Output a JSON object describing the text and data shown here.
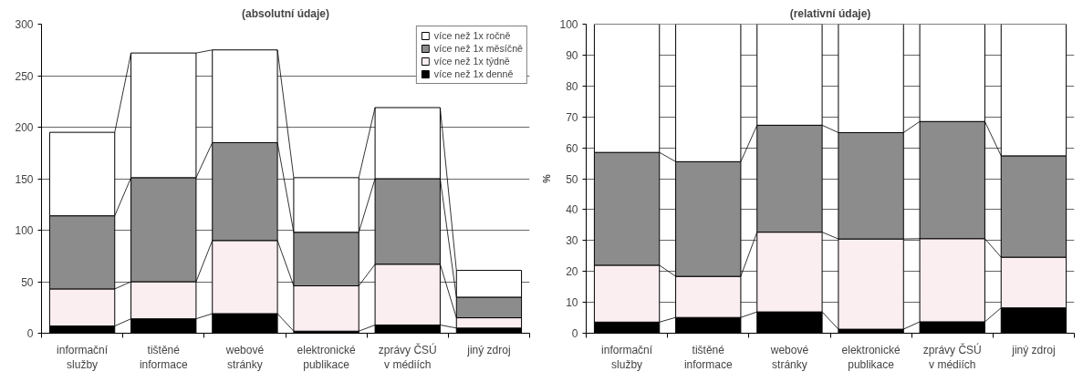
{
  "chart_data": [
    {
      "type": "bar",
      "stacked": true,
      "title": "(absolutní údaje)",
      "categories": [
        "informační\nslužby",
        "tištěné\ninformace",
        "webové\nstránky",
        "elektronické\npublikace",
        "zprávy ČSÚ\nv médiích",
        "jiný zdroj"
      ],
      "series": [
        {
          "name": "více než 1x denně",
          "color": "#000000",
          "values": [
            7,
            14,
            19,
            2,
            8,
            5
          ]
        },
        {
          "name": "více než 1x týdně",
          "color": "#fbeef0",
          "values": [
            36,
            36,
            71,
            44,
            59,
            10
          ]
        },
        {
          "name": "více než 1x měsíčně",
          "color": "#8c8c8c",
          "values": [
            71,
            101,
            95,
            52,
            83,
            20
          ]
        },
        {
          "name": "více než 1x ročně",
          "color": "#ffffff",
          "values": [
            81,
            121,
            90,
            53,
            69,
            26
          ]
        }
      ],
      "ylim": [
        0,
        300
      ],
      "yticks": [
        0,
        50,
        100,
        150,
        200,
        250,
        300
      ],
      "grid": "y",
      "legend": "top right"
    },
    {
      "type": "bar",
      "stacked": true,
      "title": "(relativní údaje)",
      "ylabel": "%",
      "categories": [
        "informační\nslužby",
        "tištěné\ninformace",
        "webové\nstránky",
        "elektronické\npublikace",
        "zprávy ČSÚ\nv médiích",
        "jiný zdroj"
      ],
      "series": [
        {
          "color": "#000000",
          "values": [
            3.6,
            5.1,
            6.9,
            1.3,
            3.7,
            8.2
          ]
        },
        {
          "color": "#fbeef0",
          "values": [
            18.4,
            13.3,
            25.8,
            29.2,
            26.9,
            16.4
          ]
        },
        {
          "color": "#8c8c8c",
          "values": [
            36.5,
            37.1,
            34.6,
            34.4,
            37.9,
            32.8
          ]
        },
        {
          "color": "#ffffff",
          "values": [
            41.5,
            44.5,
            32.7,
            35.1,
            31.5,
            42.6
          ]
        }
      ],
      "ylim": [
        0,
        100
      ],
      "yticks": [
        0,
        10,
        20,
        30,
        40,
        50,
        60,
        70,
        80,
        90,
        100
      ],
      "grid": "y"
    }
  ]
}
